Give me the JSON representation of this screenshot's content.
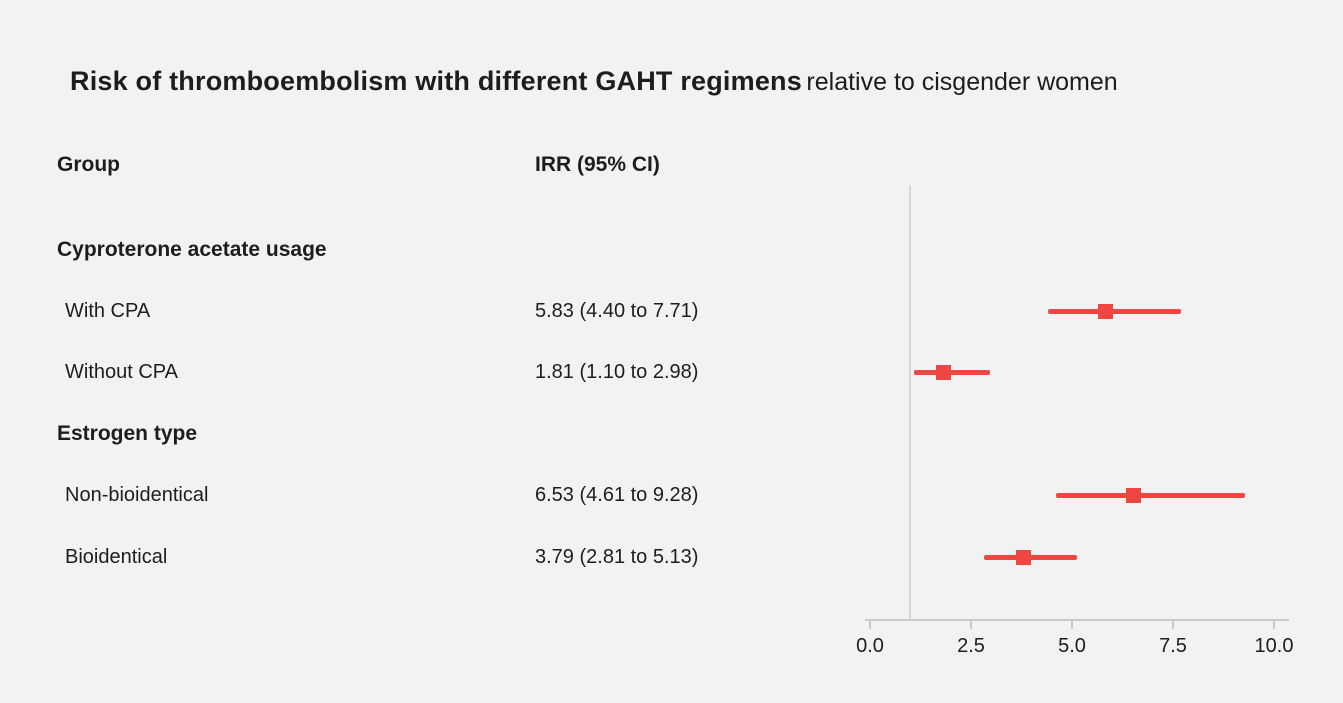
{
  "title": {
    "main": "Risk of thromboembolism with different GAHT regimens",
    "suffix": " relative to cisgender women"
  },
  "columns": {
    "group": "Group",
    "irr": "IRR (95% CI)"
  },
  "chart_data": {
    "type": "forest",
    "title": "Risk of thromboembolism with different GAHT regimens relative to cisgender women",
    "xlabel": "",
    "ylabel": "",
    "xlim": [
      0,
      10.4
    ],
    "axis_ticks": [
      0,
      2.5,
      5,
      7.5,
      10
    ],
    "axis_tick_labels": [
      "0.0",
      "2.5",
      "5.0",
      "7.5",
      "10.0"
    ],
    "reference_line": 1.0,
    "marker_color": "#ef4641",
    "axis_color": "#c9c9c9",
    "rows": [
      {
        "type": "subheading",
        "label": "Cyproterone acetate usage"
      },
      {
        "type": "data",
        "label": "With CPA",
        "value_text": "5.83 (4.40 to 7.71)",
        "estimate": 5.83,
        "ci_low": 4.4,
        "ci_high": 7.71
      },
      {
        "type": "data",
        "label": "Without CPA",
        "value_text": "1.81 (1.10 to 2.98)",
        "estimate": 1.81,
        "ci_low": 1.1,
        "ci_high": 2.98
      },
      {
        "type": "subheading",
        "label": "Estrogen type"
      },
      {
        "type": "data",
        "label": "Non-bioidentical",
        "value_text": "6.53 (4.61 to 9.28)",
        "estimate": 6.53,
        "ci_low": 4.61,
        "ci_high": 9.28
      },
      {
        "type": "data",
        "label": "Bioidentical",
        "value_text": "3.79 (2.81 to 5.13)",
        "estimate": 3.79,
        "ci_low": 2.81,
        "ci_high": 5.13
      }
    ]
  }
}
